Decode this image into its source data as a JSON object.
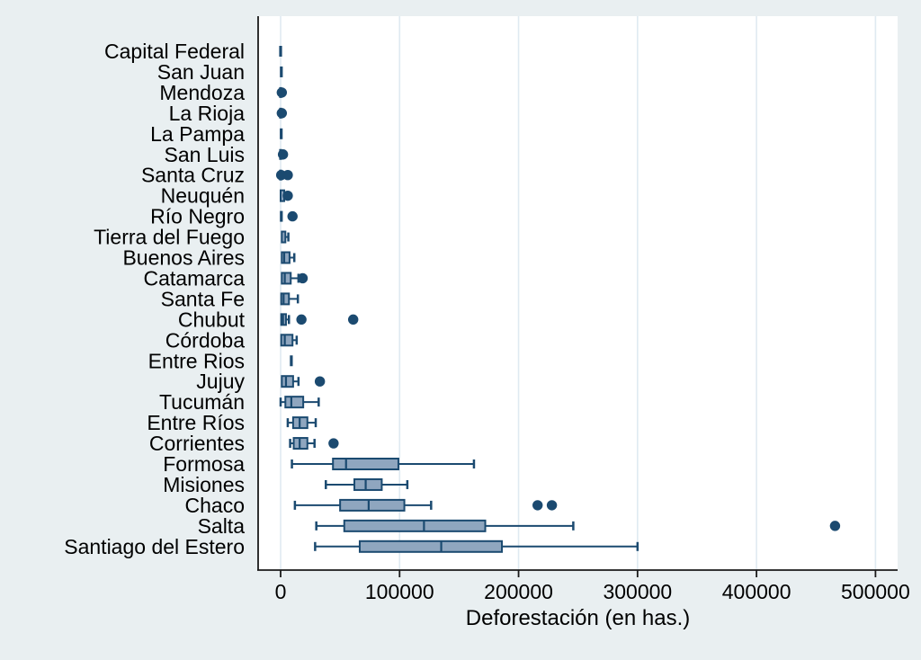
{
  "chart_data": {
    "type": "boxplot",
    "orientation": "horizontal",
    "title": "",
    "xlabel": "Deforestación (en has.)",
    "ylabel": "",
    "x_tick_labels": [
      "0",
      "100000",
      "200000",
      "300000",
      "400000",
      "500000"
    ],
    "x_tick_values": [
      0,
      100000,
      200000,
      300000,
      400000,
      500000
    ],
    "xlim": [
      -18900,
      518600
    ],
    "grid": true,
    "legend": false,
    "categories": [
      "Capital Federal",
      "San Juan",
      "Mendoza",
      "La Rioja",
      "La Pampa",
      "San Luis",
      "Santa Cruz",
      "Neuquén",
      "Río Negro",
      "Tierra del Fuego",
      "Buenos Aires",
      "Catamarca",
      "Santa Fe",
      "Chubut",
      "Córdoba",
      "Entre Rios",
      "Jujuy",
      "Tucumán",
      "Entre Ríos",
      "Corrientes",
      "Formosa",
      "Misiones",
      "Chaco",
      "Salta",
      "Santiago del Estero"
    ],
    "series": [
      {
        "label": "Capital Federal",
        "lo": 0,
        "q1": 0,
        "med": 0,
        "q3": 0,
        "hi": 0,
        "outliers": []
      },
      {
        "label": "San Juan",
        "lo": 0,
        "q1": 0,
        "med": 600,
        "q3": 1200,
        "hi": 1200,
        "outliers": []
      },
      {
        "label": "Mendoza",
        "lo": 0,
        "q1": 0,
        "med": 0,
        "q3": 0,
        "hi": 0,
        "outliers": [
          1000
        ]
      },
      {
        "label": "La Rioja",
        "lo": 0,
        "q1": 0,
        "med": 0,
        "q3": 0,
        "hi": 0,
        "outliers": [
          1000
        ]
      },
      {
        "label": "La Pampa",
        "lo": 0,
        "q1": 0,
        "med": 500,
        "q3": 1000,
        "hi": 1500,
        "outliers": []
      },
      {
        "label": "San Luis",
        "lo": 0,
        "q1": 0,
        "med": 0,
        "q3": 0,
        "hi": 0,
        "outliers": [
          2000
        ]
      },
      {
        "label": "Santa Cruz",
        "lo": 0,
        "q1": 0,
        "med": 0,
        "q3": 0,
        "hi": 0,
        "outliers": [
          500,
          6000
        ]
      },
      {
        "label": "Neuquén",
        "lo": 0,
        "q1": 0,
        "med": 1200,
        "q3": 3000,
        "hi": 3000,
        "outliers": [
          6000
        ]
      },
      {
        "label": "Río Negro",
        "lo": 0,
        "q1": 0,
        "med": 600,
        "q3": 1500,
        "hi": 2000,
        "outliers": [
          10000
        ]
      },
      {
        "label": "Tierra del Fuego",
        "lo": 0,
        "q1": 1000,
        "med": 2000,
        "q3": 4000,
        "hi": 6500,
        "outliers": []
      },
      {
        "label": "Buenos Aires",
        "lo": 0,
        "q1": 1000,
        "med": 3000,
        "q3": 7500,
        "hi": 11500,
        "outliers": []
      },
      {
        "label": "Catamarca",
        "lo": 0,
        "q1": 1000,
        "med": 3500,
        "q3": 8500,
        "hi": 15000,
        "outliers": [
          18500
        ]
      },
      {
        "label": "Santa Fe",
        "lo": 0,
        "q1": 500,
        "med": 2500,
        "q3": 7000,
        "hi": 14500,
        "outliers": []
      },
      {
        "label": "Chubut",
        "lo": 0,
        "q1": 500,
        "med": 2000,
        "q3": 4500,
        "hi": 7000,
        "outliers": [
          17500,
          61000
        ]
      },
      {
        "label": "Córdoba",
        "lo": 0,
        "q1": 500,
        "med": 3500,
        "q3": 10000,
        "hi": 13500,
        "outliers": []
      },
      {
        "label": "Entre Rios",
        "lo": 9000,
        "q1": 9000,
        "med": 9000,
        "q3": 9000,
        "hi": 9000,
        "outliers": []
      },
      {
        "label": "Jujuy",
        "lo": 0,
        "q1": 1000,
        "med": 4500,
        "q3": 10500,
        "hi": 15000,
        "outliers": [
          33000
        ]
      },
      {
        "label": "Tucumán",
        "lo": 0,
        "q1": 4000,
        "med": 9000,
        "q3": 19000,
        "hi": 32000,
        "outliers": []
      },
      {
        "label": "Entre Ríos",
        "lo": 6000,
        "q1": 10500,
        "med": 16000,
        "q3": 22500,
        "hi": 29500,
        "outliers": []
      },
      {
        "label": "Corrientes",
        "lo": 8000,
        "q1": 11000,
        "med": 16000,
        "q3": 22500,
        "hi": 28500,
        "outliers": [
          44500
        ]
      },
      {
        "label": "Formosa",
        "lo": 9500,
        "q1": 44000,
        "med": 55000,
        "q3": 99000,
        "hi": 162500,
        "outliers": []
      },
      {
        "label": "Misiones",
        "lo": 38000,
        "q1": 62000,
        "med": 71500,
        "q3": 85000,
        "hi": 106500,
        "outliers": []
      },
      {
        "label": "Chaco",
        "lo": 12000,
        "q1": 50000,
        "med": 74000,
        "q3": 104000,
        "hi": 126500,
        "outliers": [
          216000,
          228000
        ]
      },
      {
        "label": "Salta",
        "lo": 30000,
        "q1": 53500,
        "med": 120500,
        "q3": 172000,
        "hi": 246000,
        "outliers": [
          466000
        ]
      },
      {
        "label": "Santiago del Estero",
        "lo": 29000,
        "q1": 66500,
        "med": 135000,
        "q3": 186000,
        "hi": 300000,
        "outliers": []
      }
    ],
    "colors": {
      "page_bg": "#e9eff1",
      "plot_bg": "#ffffff",
      "gridline": "#dfeaf1",
      "axis": "#1a1a1a",
      "box_fill": "#8fa6bf",
      "box_border": "#1b4a70",
      "whisker": "#1b4a70",
      "outlier": "#1b4a70",
      "text": "#000000"
    }
  }
}
